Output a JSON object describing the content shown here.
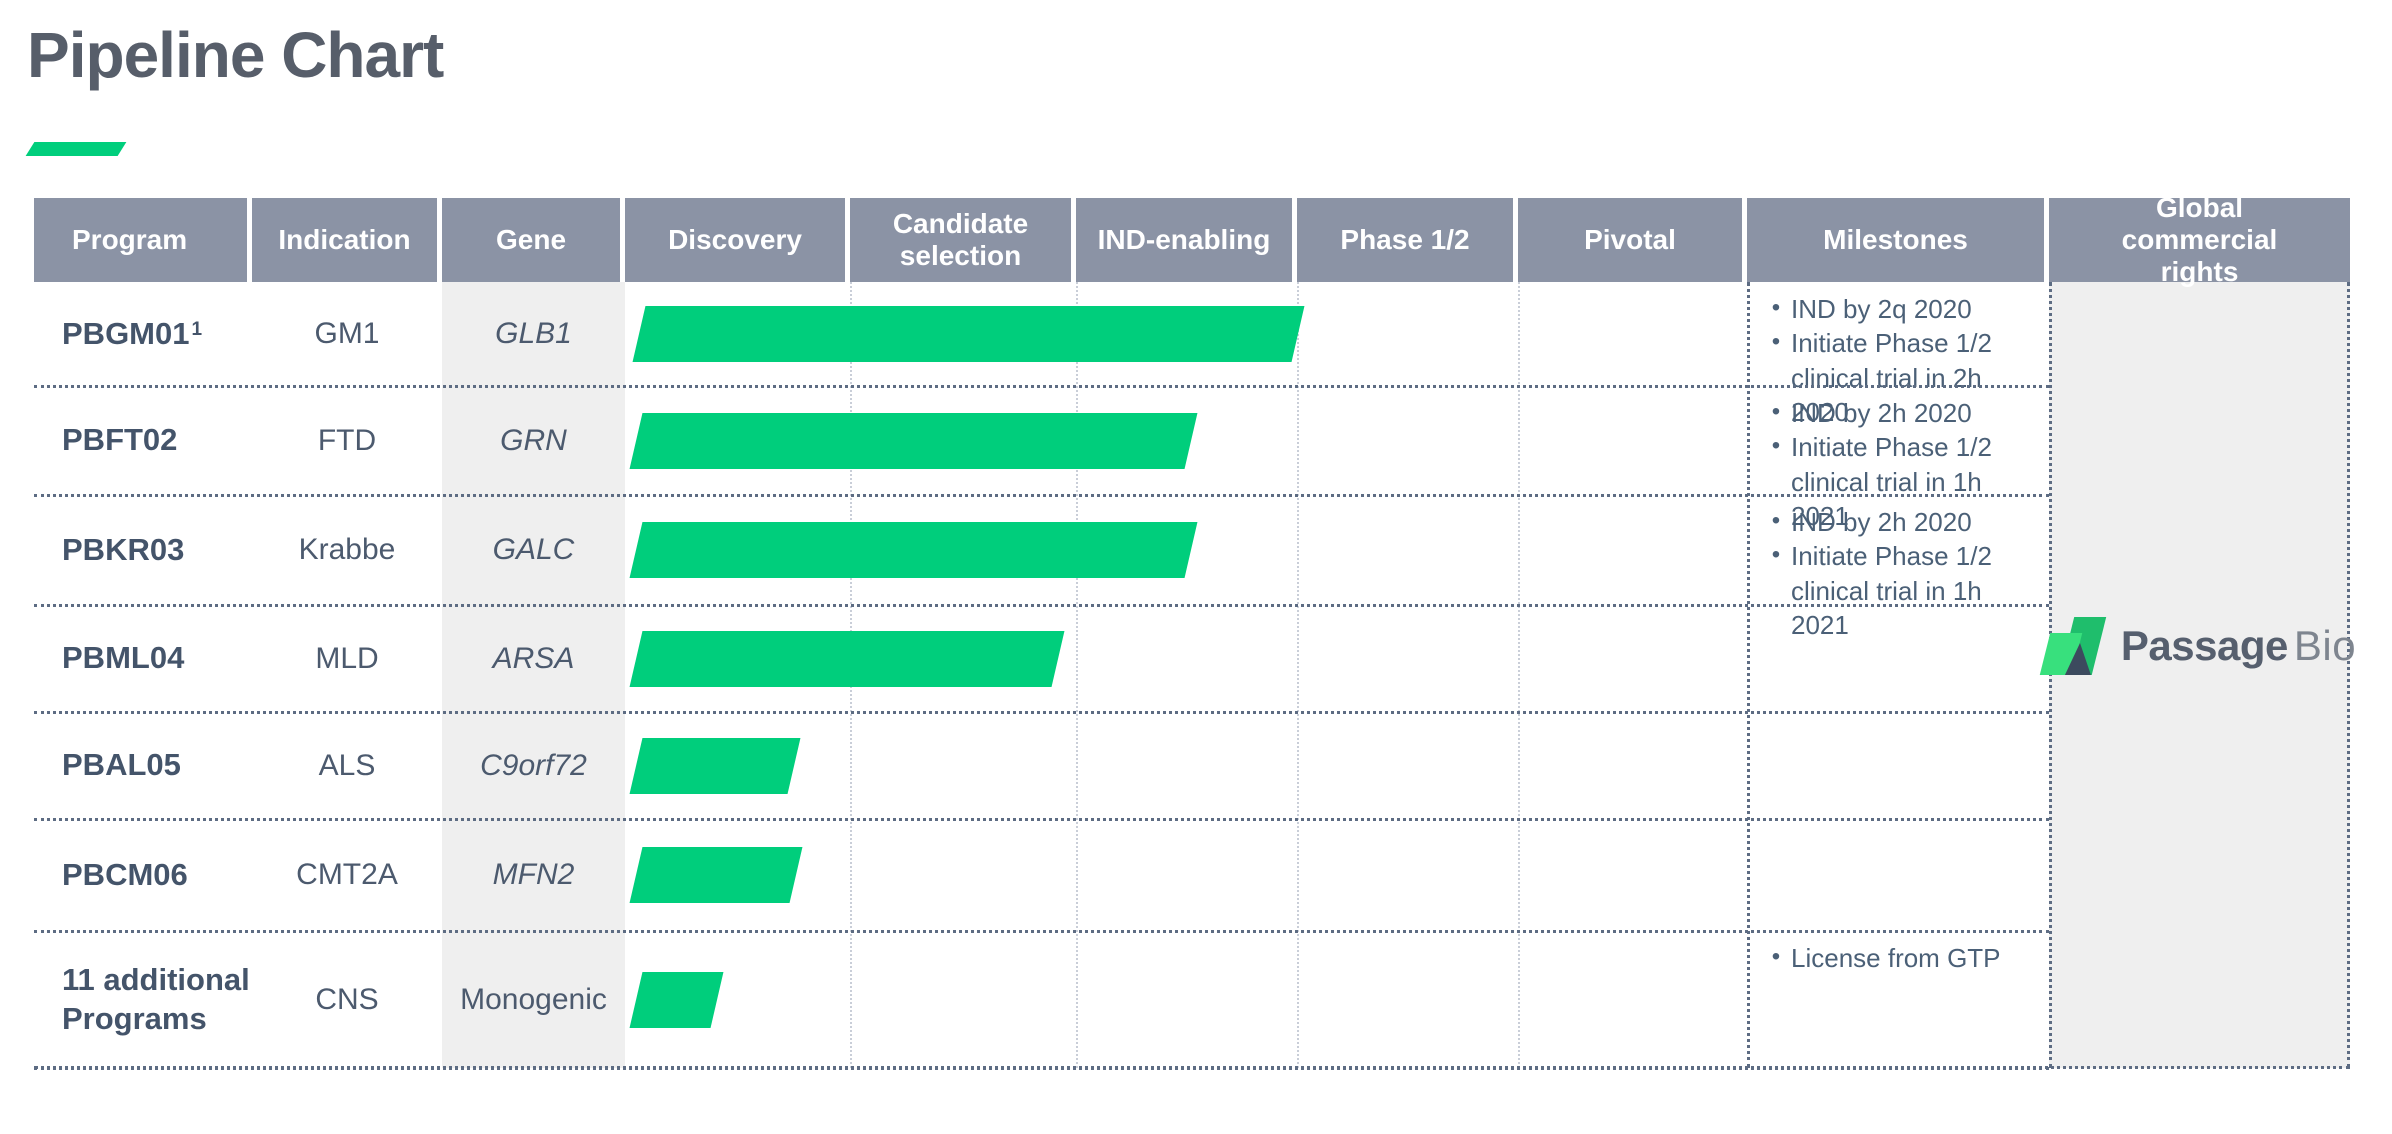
{
  "title": "Pipeline Chart",
  "colors": {
    "accent_green": "#00CE7C",
    "header_bg": "#8B93A5",
    "header_text": "#FFFFFF",
    "band_gray": "#EFEFEF",
    "text_navy": "#44546A",
    "milestone_text": "#4B6077",
    "dotted_navy": "#5D6C83",
    "dotted_light": "#C9CED8"
  },
  "table": {
    "headers": [
      "Program",
      "Indication",
      "Gene",
      "Discovery",
      "Candidate selection",
      "IND-enabling",
      "Phase 1/2",
      "Pivotal",
      "Milestones",
      "Global commercial rights"
    ]
  },
  "chart_data": {
    "type": "bar",
    "orientation": "horizontal-gantt",
    "stages": [
      "Discovery",
      "Candidate selection",
      "IND-enabling",
      "Phase 1/2",
      "Pivotal"
    ],
    "bar_color": "#00CE7C",
    "programs": [
      {
        "program": "PBGM01",
        "footnote_marker": "1",
        "indication": "GM1",
        "gene": "GLB1",
        "gene_italic": true,
        "bar_start_stage": 0.06,
        "bar_end_stage": 3.0,
        "milestones": [
          "IND by 2q 2020",
          "Initiate Phase 1/2 clinical trial in 2h 2020"
        ]
      },
      {
        "program": "PBFT02",
        "indication": "FTD",
        "gene": "GRN",
        "gene_italic": true,
        "bar_start_stage": 0.05,
        "bar_end_stage": 2.52,
        "milestones": [
          "IND by 2h 2020",
          "Initiate Phase 1/2 clinical trial in 1h 2021"
        ]
      },
      {
        "program": "PBKR03",
        "indication": "Krabbe",
        "gene": "GALC",
        "gene_italic": true,
        "bar_start_stage": 0.05,
        "bar_end_stage": 2.52,
        "milestones": [
          "IND by 2h 2020",
          "Initiate Phase 1/2 clinical trial in 1h 2021"
        ]
      },
      {
        "program": "PBML04",
        "indication": "MLD",
        "gene": "ARSA",
        "gene_italic": true,
        "bar_start_stage": 0.05,
        "bar_end_stage": 1.92,
        "milestones": []
      },
      {
        "program": "PBAL05",
        "indication": "ALS",
        "gene": "C9orf72",
        "gene_italic": true,
        "bar_start_stage": 0.05,
        "bar_end_stage": 0.75,
        "milestones": []
      },
      {
        "program": "PBCM06",
        "indication": "CMT2A",
        "gene": "MFN2",
        "gene_italic": true,
        "bar_start_stage": 0.05,
        "bar_end_stage": 0.76,
        "milestones": []
      },
      {
        "program": "11 additional Programs",
        "indication": "CNS",
        "gene": "Monogenic",
        "gene_italic": false,
        "bar_start_stage": 0.05,
        "bar_end_stage": 0.41,
        "milestones": [
          "License from GTP"
        ]
      }
    ]
  },
  "logo": {
    "text_bold": "Passage",
    "text_light": "Bio"
  }
}
